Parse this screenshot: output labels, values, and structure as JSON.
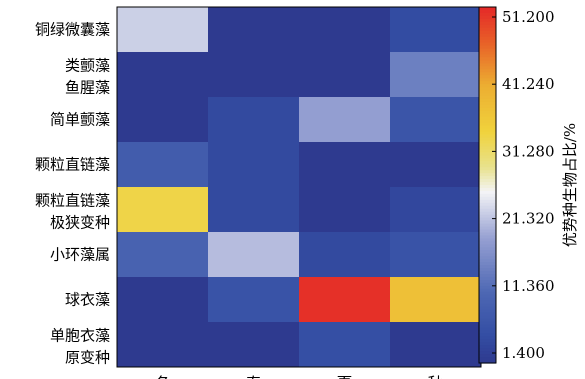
{
  "chart_data": {
    "type": "heatmap",
    "title": "",
    "rows": [
      "铜绿微囊藻",
      "类颤藻\n鱼腥藻",
      "简单颤藻",
      "颗粒直链藻",
      "颗粒直链藻\n极狭变种",
      "小环藻属",
      "球衣藻",
      "单胞衣藻\n原变种"
    ],
    "columns": [
      "冬",
      "春",
      "夏",
      "秋"
    ],
    "values": [
      [
        22.5,
        1.4,
        1.4,
        5.0
      ],
      [
        1.4,
        1.4,
        1.4,
        14.5
      ],
      [
        1.4,
        4.5,
        18.5,
        7.0
      ],
      [
        8.5,
        4.5,
        1.4,
        1.4
      ],
      [
        33.0,
        4.5,
        1.4,
        4.0
      ],
      [
        10.0,
        21.0,
        4.5,
        6.5
      ],
      [
        1.4,
        6.5,
        50.5,
        37.0
      ],
      [
        1.4,
        1.4,
        5.5,
        1.4
      ]
    ],
    "colorbar": {
      "label": "优势种生物占比/%",
      "ticks": [
        1.4,
        11.36,
        21.32,
        31.28,
        41.24,
        51.2
      ],
      "tick_labels": [
        "1.400",
        "11.360",
        "21.320",
        "31.280",
        "41.240",
        "51.200"
      ],
      "range": [
        1.4,
        51.2
      ]
    },
    "colors": {
      "low": "#2e3a8f",
      "mid": "#f4f4f6",
      "high": "#e8322c"
    }
  }
}
